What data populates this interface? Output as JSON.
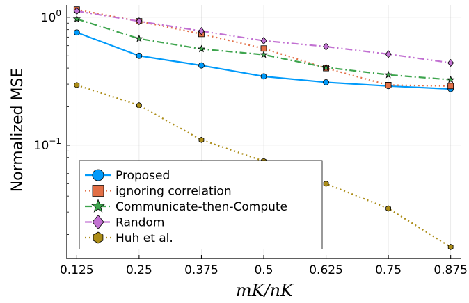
{
  "chart_data": {
    "type": "line",
    "xlabel": "mK/nK",
    "ylabel": "Normalized MSE",
    "y_scale": "log10",
    "ylim": [
      0.013,
      1.25
    ],
    "x": [
      0.125,
      0.25,
      0.375,
      0.5,
      0.625,
      0.75,
      0.875
    ],
    "x_tick_labels": [
      "0.125",
      "0.25",
      "0.375",
      "0.5",
      "0.625",
      "0.75",
      "0.875"
    ],
    "y_ticks": [
      {
        "value": 1.0,
        "base": "10",
        "exp": "0"
      },
      {
        "value": 0.1,
        "base": "10",
        "exp": "−1"
      }
    ],
    "grid": true,
    "legend_position": "bottom-left",
    "series": [
      {
        "name": "Proposed",
        "color": "#009AFA",
        "marker": "circle",
        "dash": "solid",
        "values": [
          0.76,
          0.5,
          0.42,
          0.345,
          0.31,
          0.29,
          0.275
        ]
      },
      {
        "name": "ignoring correlation",
        "color": "#E26F46",
        "marker": "square",
        "dash": "dot",
        "values": [
          1.15,
          0.93,
          0.74,
          0.57,
          0.4,
          0.295,
          0.29
        ]
      },
      {
        "name": "Communicate-then-Compute",
        "color": "#3DA44D",
        "marker": "star",
        "dash": "dashdot",
        "values": [
          0.97,
          0.68,
          0.565,
          0.51,
          0.405,
          0.355,
          0.325
        ]
      },
      {
        "name": "Random",
        "color": "#C271D2",
        "marker": "diamond",
        "dash": "dashdotdot",
        "values": [
          1.12,
          0.93,
          0.78,
          0.655,
          0.59,
          0.515,
          0.44
        ]
      },
      {
        "name": "Huh et al.",
        "color": "#AC8D18",
        "marker": "hexagon",
        "dash": "dot",
        "values": [
          0.295,
          0.205,
          0.11,
          0.075,
          0.05,
          0.032,
          0.016
        ]
      }
    ]
  }
}
